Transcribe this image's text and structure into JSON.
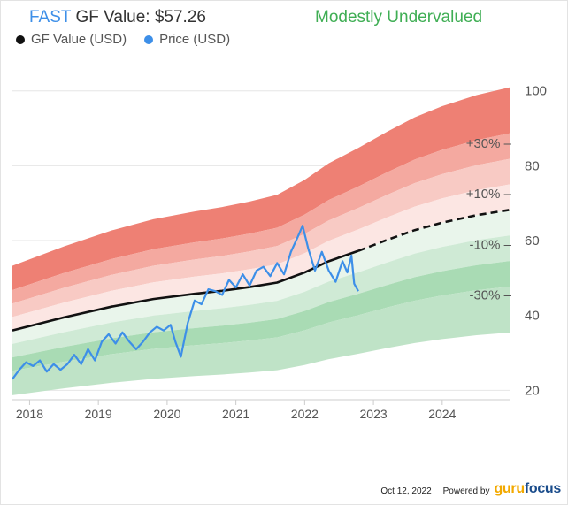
{
  "header": {
    "ticker": "FAST",
    "gf_value_label": "GF Value: $57.26",
    "valuation": "Modestly Undervalued"
  },
  "legend": {
    "gf_value": "GF Value (USD)",
    "price": "Price (USD)"
  },
  "footer": {
    "date": "Oct 12, 2022",
    "powered_by": "Powered by",
    "logo_part1": "guru",
    "logo_part2": "focus"
  },
  "colors": {
    "gf_value": "#111111",
    "price": "#3d8fe8",
    "over": "#ee8074",
    "under": "#5fbf73",
    "valuation": "#3fae54"
  },
  "chart_data": {
    "type": "line",
    "xlim": [
      2017.75,
      2024.98
    ],
    "ylim": [
      17.5,
      103
    ],
    "x_ticks": [
      2018,
      2019,
      2020,
      2021,
      2022,
      2023,
      2024
    ],
    "x_tick_labels": [
      "2018",
      "2019",
      "2020",
      "2021",
      "2022",
      "2023",
      "2024"
    ],
    "y_ticks": [
      20,
      40,
      60,
      80,
      100
    ],
    "y_tick_labels": [
      "20",
      "40",
      "60",
      "80",
      "100"
    ],
    "band_labels": [
      {
        "text": "+30% –",
        "y": 86
      },
      {
        "text": "+10% –",
        "y": 72.5
      },
      {
        "text": "-10% –",
        "y": 59
      },
      {
        "text": "-30% –",
        "y": 45.5
      }
    ],
    "gf_value": {
      "x": [
        2017.75,
        2018.5,
        2019.2,
        2019.8,
        2020.4,
        2020.8,
        2021.2,
        2021.6,
        2022.0,
        2022.35,
        2022.78,
        2023.2,
        2023.6,
        2024.0,
        2024.5,
        2024.98
      ],
      "y": [
        36.0,
        39.5,
        42.4,
        44.4,
        45.8,
        46.6,
        47.6,
        48.8,
        51.5,
        54.5,
        57.26,
        60.2,
        62.8,
        64.8,
        66.8,
        68.2
      ]
    },
    "gf_projection_start": 2022.78,
    "price": {
      "x": [
        2017.75,
        2017.85,
        2017.95,
        2018.05,
        2018.15,
        2018.25,
        2018.35,
        2018.45,
        2018.55,
        2018.65,
        2018.75,
        2018.85,
        2018.95,
        2019.05,
        2019.15,
        2019.25,
        2019.35,
        2019.45,
        2019.55,
        2019.65,
        2019.75,
        2019.85,
        2019.95,
        2020.05,
        2020.12,
        2020.2,
        2020.3,
        2020.4,
        2020.5,
        2020.6,
        2020.7,
        2020.8,
        2020.9,
        2021.0,
        2021.1,
        2021.2,
        2021.3,
        2021.4,
        2021.5,
        2021.6,
        2021.7,
        2021.8,
        2021.9,
        2021.97,
        2022.05,
        2022.15,
        2022.25,
        2022.35,
        2022.45,
        2022.55,
        2022.62,
        2022.68,
        2022.72,
        2022.78
      ],
      "y": [
        23.0,
        25.5,
        27.5,
        26.5,
        28.0,
        25.0,
        27.0,
        25.5,
        27.0,
        29.5,
        27.0,
        31.0,
        28.0,
        33.0,
        35.0,
        32.5,
        35.5,
        33.0,
        31.0,
        33.0,
        35.5,
        37.0,
        36.0,
        37.5,
        33.0,
        29.0,
        38.0,
        44.0,
        43.0,
        47.0,
        46.5,
        45.5,
        49.5,
        47.5,
        51.0,
        48.0,
        52.0,
        53.0,
        50.5,
        54.0,
        51.0,
        57.0,
        61.0,
        64.0,
        58.0,
        52.0,
        57.0,
        52.0,
        49.0,
        54.5,
        51.5,
        56.0,
        48.5,
        46.5
      ]
    }
  }
}
